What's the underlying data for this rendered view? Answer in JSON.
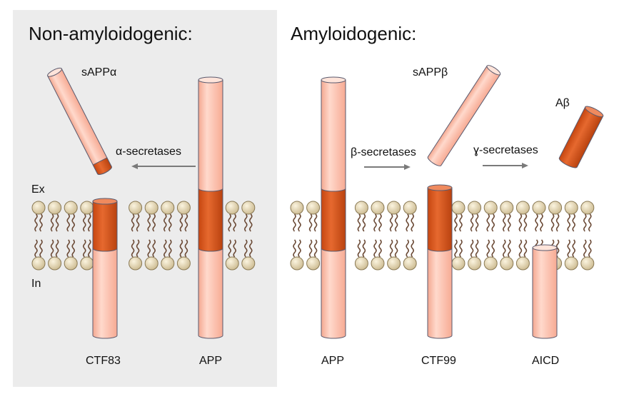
{
  "panels": {
    "non_amyloidogenic": {
      "title": "Non-amyloidogenic:",
      "fragment_label": "sAPPα",
      "enzyme_label": "α-secretases",
      "membrane_side_ex": "Ex",
      "membrane_side_in": "In",
      "bottom_labels": [
        "CTF83",
        "APP"
      ]
    },
    "amyloidogenic": {
      "title": "Amyloidogenic:",
      "fragment_label": "sAPPβ",
      "enzyme_label_1": "β-secretases",
      "enzyme_label_2": "ɣ-secretases",
      "peptide_label": "Aβ",
      "bottom_labels": [
        "APP",
        "CTF99",
        "AICD"
      ]
    }
  },
  "colors": {
    "panel_background": "#ececec",
    "protein_light": "#fbc3b2",
    "protein_dark": "#d6541b",
    "outline": "#5a5a6e",
    "lipid_head": "#e2d5b0",
    "lipid_tail": "#6b4a36",
    "arrow": "#7a7a7a"
  }
}
